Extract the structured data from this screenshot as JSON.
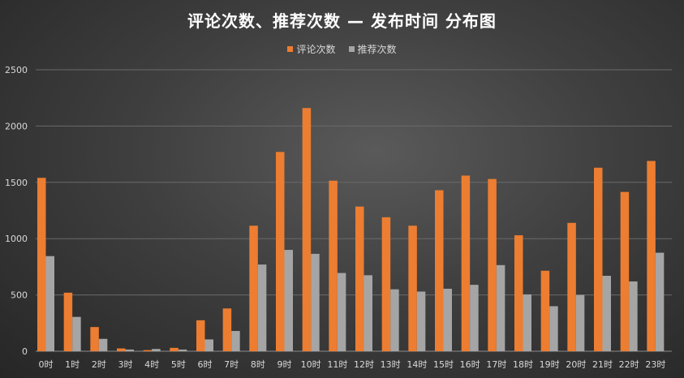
{
  "chart_data": {
    "type": "bar",
    "title": "评论次数、推荐次数 — 发布时间 分布图",
    "categories": [
      "0时",
      "1时",
      "2时",
      "3时",
      "4时",
      "5时",
      "6时",
      "7时",
      "8时",
      "9时",
      "10时",
      "11时",
      "12时",
      "13时",
      "14时",
      "15时",
      "16时",
      "17时",
      "18时",
      "19时",
      "20时",
      "21时",
      "22时",
      "23时"
    ],
    "series": [
      {
        "name": "评论次数",
        "color": "#ed7d31",
        "values": [
          1540,
          520,
          215,
          25,
          10,
          30,
          275,
          380,
          1115,
          1770,
          2160,
          1515,
          1285,
          1190,
          1115,
          1430,
          1560,
          1530,
          1030,
          715,
          1140,
          1630,
          1415,
          1690
        ]
      },
      {
        "name": "推荐次数",
        "color": "#a5a5a5",
        "values": [
          845,
          305,
          110,
          15,
          20,
          15,
          105,
          180,
          770,
          900,
          865,
          695,
          675,
          550,
          530,
          555,
          590,
          765,
          505,
          400,
          500,
          670,
          620,
          875
        ]
      }
    ],
    "ylim": [
      0,
      2500
    ],
    "yticks": [
      "0",
      "500",
      "1000",
      "1500",
      "2000",
      "2500"
    ],
    "grid": true,
    "legend_position": "top-center"
  }
}
